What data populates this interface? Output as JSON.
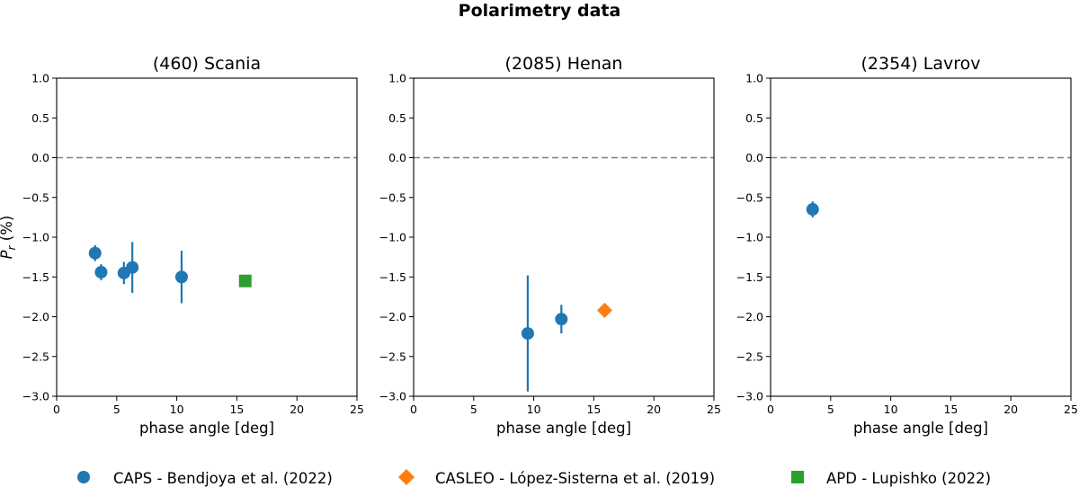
{
  "figure_title": "Polarimetry data",
  "colors": {
    "caps": "#1f77b4",
    "casleo": "#ff7f0e",
    "apd": "#2ca02c",
    "zero_line": "#808080"
  },
  "legend": {
    "placement": "bottom-center",
    "entries": [
      {
        "key": "caps",
        "marker": "circle",
        "label": "CAPS - Bendjoya et al. (2022)"
      },
      {
        "key": "casleo",
        "marker": "diamond",
        "label": "CASLEO - López-Sisterna et al. (2019)"
      },
      {
        "key": "apd",
        "marker": "square",
        "label": "APD - Lupishko (2022)"
      }
    ]
  },
  "chart_data": [
    {
      "type": "scatter",
      "title": "(460) Scania",
      "xlabel": "phase angle [deg]",
      "ylabel": "P_r (%)",
      "xlim": [
        0,
        25
      ],
      "ylim": [
        -3.0,
        1.0
      ],
      "xticks": [
        0,
        5,
        10,
        15,
        20,
        25
      ],
      "yticks": [
        1.0,
        0.5,
        0.0,
        -0.5,
        -1.0,
        -1.5,
        -2.0,
        -2.5,
        -3.0
      ],
      "ytick_labels": [
        "1.0",
        "0.5",
        "0.0",
        "−0.5",
        "−1.0",
        "−1.5",
        "−2.0",
        "−2.5",
        "−3.0"
      ],
      "zero_line": 0.0,
      "series": [
        {
          "name": "CAPS - Bendjoya et al. (2022)",
          "key": "caps",
          "marker": "circle",
          "points": [
            {
              "x": 3.2,
              "y": -1.2,
              "err": 0.1
            },
            {
              "x": 3.7,
              "y": -1.44,
              "err": 0.1
            },
            {
              "x": 5.6,
              "y": -1.45,
              "err": 0.14
            },
            {
              "x": 6.3,
              "y": -1.38,
              "err": 0.32
            },
            {
              "x": 10.4,
              "y": -1.5,
              "err": 0.33
            }
          ]
        },
        {
          "name": "APD - Lupishko (2022)",
          "key": "apd",
          "marker": "square",
          "points": [
            {
              "x": 15.7,
              "y": -1.55,
              "err": 0
            }
          ]
        }
      ]
    },
    {
      "type": "scatter",
      "title": "(2085) Henan",
      "xlabel": "phase angle [deg]",
      "ylabel": "",
      "xlim": [
        0,
        25
      ],
      "ylim": [
        -3.0,
        1.0
      ],
      "xticks": [
        0,
        5,
        10,
        15,
        20,
        25
      ],
      "yticks": [
        1.0,
        0.5,
        0.0,
        -0.5,
        -1.0,
        -1.5,
        -2.0,
        -2.5,
        -3.0
      ],
      "ytick_labels": [
        "1.0",
        "0.5",
        "0.0",
        "−0.5",
        "−1.0",
        "−1.5",
        "−2.0",
        "−2.5",
        "−3.0"
      ],
      "zero_line": 0.0,
      "series": [
        {
          "name": "CAPS - Bendjoya et al. (2022)",
          "key": "caps",
          "marker": "circle",
          "points": [
            {
              "x": 9.5,
              "y": -2.21,
              "err": 0.73
            },
            {
              "x": 12.3,
              "y": -2.03,
              "err": 0.18
            }
          ]
        },
        {
          "name": "CASLEO - López-Sisterna et al. (2019)",
          "key": "casleo",
          "marker": "diamond",
          "points": [
            {
              "x": 15.9,
              "y": -1.92,
              "err": 0
            }
          ]
        }
      ]
    },
    {
      "type": "scatter",
      "title": "(2354) Lavrov",
      "xlabel": "phase angle [deg]",
      "ylabel": "",
      "xlim": [
        0,
        25
      ],
      "ylim": [
        -3.0,
        1.0
      ],
      "xticks": [
        0,
        5,
        10,
        15,
        20,
        25
      ],
      "yticks": [
        1.0,
        0.5,
        0.0,
        -0.5,
        -1.0,
        -1.5,
        -2.0,
        -2.5,
        -3.0
      ],
      "ytick_labels": [
        "1.0",
        "0.5",
        "0.0",
        "−0.5",
        "−1.0",
        "−1.5",
        "−2.0",
        "−2.5",
        "−3.0"
      ],
      "zero_line": 0.0,
      "series": [
        {
          "name": "CAPS - Bendjoya et al. (2022)",
          "key": "caps",
          "marker": "circle",
          "points": [
            {
              "x": 3.5,
              "y": -0.65,
              "err": 0.1
            }
          ]
        }
      ]
    }
  ]
}
